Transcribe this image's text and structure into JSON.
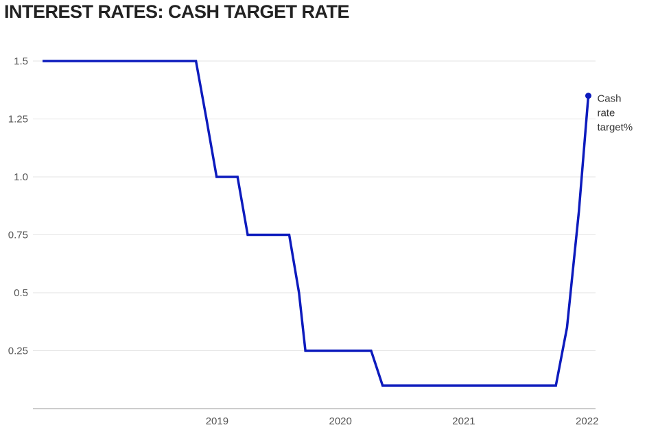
{
  "chart_data": {
    "type": "line",
    "title": "INTEREST RATES: CASH TARGET RATE",
    "xlabel": "",
    "ylabel": "",
    "xlim": [
      "2018-02-01",
      "2022-07-01"
    ],
    "ylim": [
      0,
      1.5
    ],
    "x_ticks": [
      "2019",
      "2020",
      "2021",
      "2022"
    ],
    "y_ticks": [
      "0.25",
      "0.5",
      "0.75",
      "1.0",
      "1.25",
      "1.5"
    ],
    "grid": "horizontal",
    "colors": {
      "line": "#0d1bbd",
      "grid": "#e3e3e3",
      "axis": "#999999"
    },
    "series": [
      {
        "name": "Cash rate target%",
        "label_lines": [
          "Cash",
          "rate",
          "target%"
        ],
        "x": [
          "2018-02-01",
          "2019-05-01",
          "2019-06-01",
          "2019-07-01",
          "2019-09-01",
          "2019-10-01",
          "2020-02-01",
          "2020-03-01",
          "2020-03-20",
          "2020-10-01",
          "2020-11-04",
          "2022-04-01",
          "2022-05-04",
          "2022-06-08",
          "2022-07-06"
        ],
        "values": [
          1.5,
          1.5,
          1.25,
          1.0,
          1.0,
          0.75,
          0.75,
          0.5,
          0.25,
          0.25,
          0.1,
          0.1,
          0.35,
          0.85,
          1.35
        ]
      }
    ]
  }
}
